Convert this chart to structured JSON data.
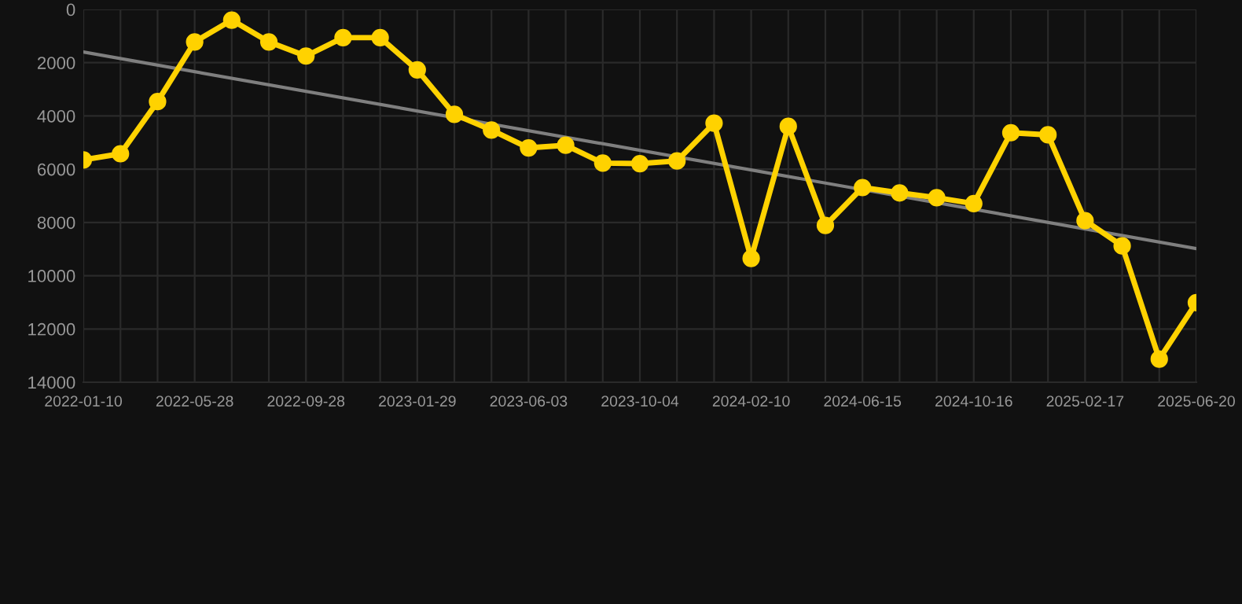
{
  "chart_data": {
    "type": "line",
    "categories": [
      "2022-01-10",
      null,
      null,
      "2022-05-28",
      null,
      null,
      "2022-09-28",
      null,
      null,
      "2023-01-29",
      null,
      null,
      "2023-06-03",
      null,
      null,
      "2023-10-04",
      null,
      null,
      "2024-02-10",
      null,
      null,
      "2024-06-15",
      null,
      null,
      "2024-10-16",
      null,
      null,
      "2025-02-17",
      null,
      null,
      "2025-06-20"
    ],
    "series": [
      {
        "color": "#ffd200",
        "marker": "circle",
        "values": [
          5650,
          5420,
          3460,
          1220,
          400,
          1220,
          1750,
          1060,
          1060,
          2270,
          3940,
          4530,
          5200,
          5100,
          5770,
          5790,
          5690,
          4270,
          9350,
          4390,
          8110,
          6690,
          6890,
          7070,
          7290,
          4630,
          4710,
          7930,
          8880,
          13130,
          11010
        ]
      },
      {
        "color": "#7f7f7f",
        "marker": "none",
        "values": [
          1600,
          null,
          null,
          null,
          null,
          null,
          null,
          null,
          null,
          null,
          null,
          null,
          null,
          null,
          null,
          null,
          null,
          null,
          null,
          null,
          null,
          null,
          null,
          null,
          null,
          null,
          null,
          null,
          null,
          null,
          8980
        ]
      }
    ],
    "ylim": [
      14000,
      0
    ],
    "yticks": [
      0,
      2000,
      4000,
      6000,
      8000,
      10000,
      12000,
      14000
    ],
    "grid": true
  }
}
